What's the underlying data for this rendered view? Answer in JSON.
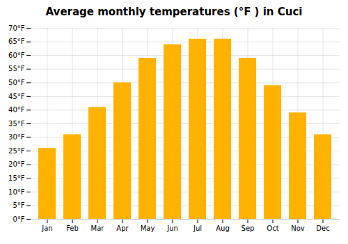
{
  "chart_data": {
    "type": "bar",
    "title": "Average monthly temperatures (°F ) in Cuci",
    "categories": [
      "Jan",
      "Feb",
      "Mar",
      "Apr",
      "May",
      "Jun",
      "Jul",
      "Aug",
      "Sep",
      "Oct",
      "Nov",
      "Dec"
    ],
    "values": [
      26,
      31,
      41,
      50,
      59,
      64,
      66,
      66,
      59,
      49,
      39,
      31
    ],
    "color": "#FFB300",
    "ylim": [
      0,
      70
    ],
    "yticks": [
      {
        "value": 0,
        "label": "0°F"
      },
      {
        "value": 5,
        "label": "5°F"
      },
      {
        "value": 10,
        "label": "10°F"
      },
      {
        "value": 15,
        "label": "15°F"
      },
      {
        "value": 20,
        "label": "20°F"
      },
      {
        "value": 25,
        "label": "25°F"
      },
      {
        "value": 30,
        "label": "30°F"
      },
      {
        "value": 35,
        "label": "35°F"
      },
      {
        "value": 40,
        "label": "40°F"
      },
      {
        "value": 45,
        "label": "45°F"
      },
      {
        "value": 50,
        "label": "50°F"
      },
      {
        "value": 55,
        "label": "55°F"
      },
      {
        "value": 60,
        "label": "60°F"
      },
      {
        "value": 65,
        "label": "65°F"
      },
      {
        "value": 70,
        "label": "70°F"
      }
    ],
    "grid": true
  }
}
